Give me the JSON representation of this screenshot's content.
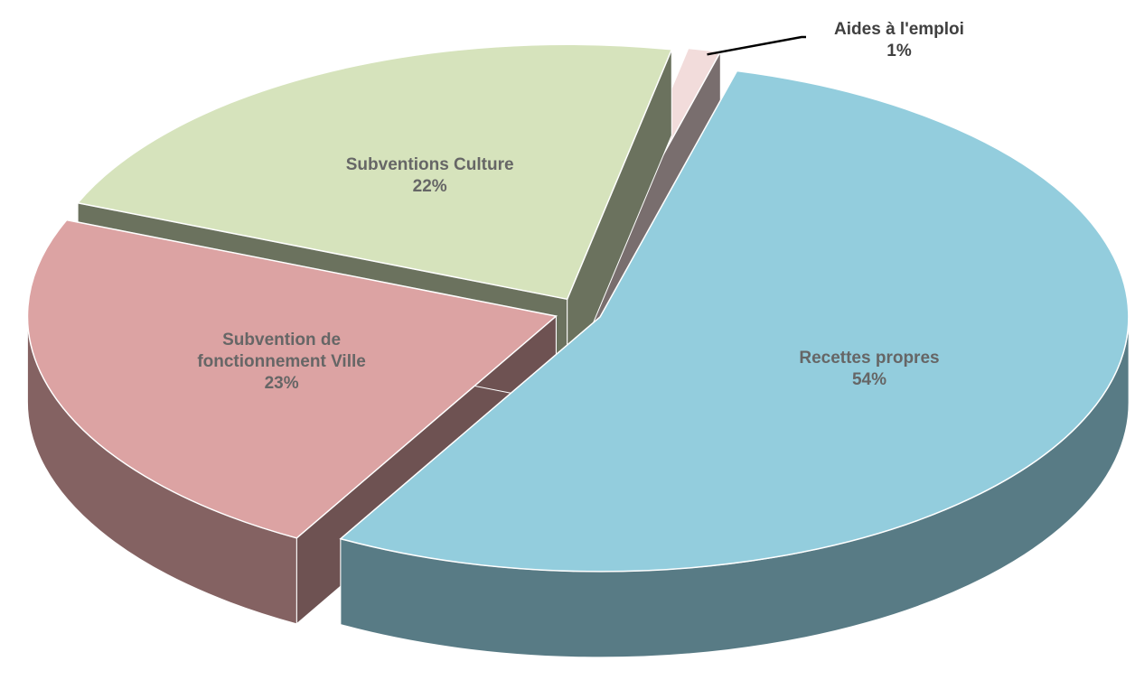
{
  "chart_data": {
    "type": "pie",
    "three_d": true,
    "exploded": true,
    "categories": [
      "Recettes propres",
      "Subvention de fonctionnement Ville",
      "Subventions Culture",
      "Aides à l'emploi"
    ],
    "values": [
      54,
      23,
      22,
      1
    ],
    "value_labels": [
      "54%",
      "23%",
      "22%",
      "1%"
    ],
    "colors": [
      "#93cddd",
      "#dca3a3",
      "#d6e3bc",
      "#f2dcdb"
    ]
  }
}
